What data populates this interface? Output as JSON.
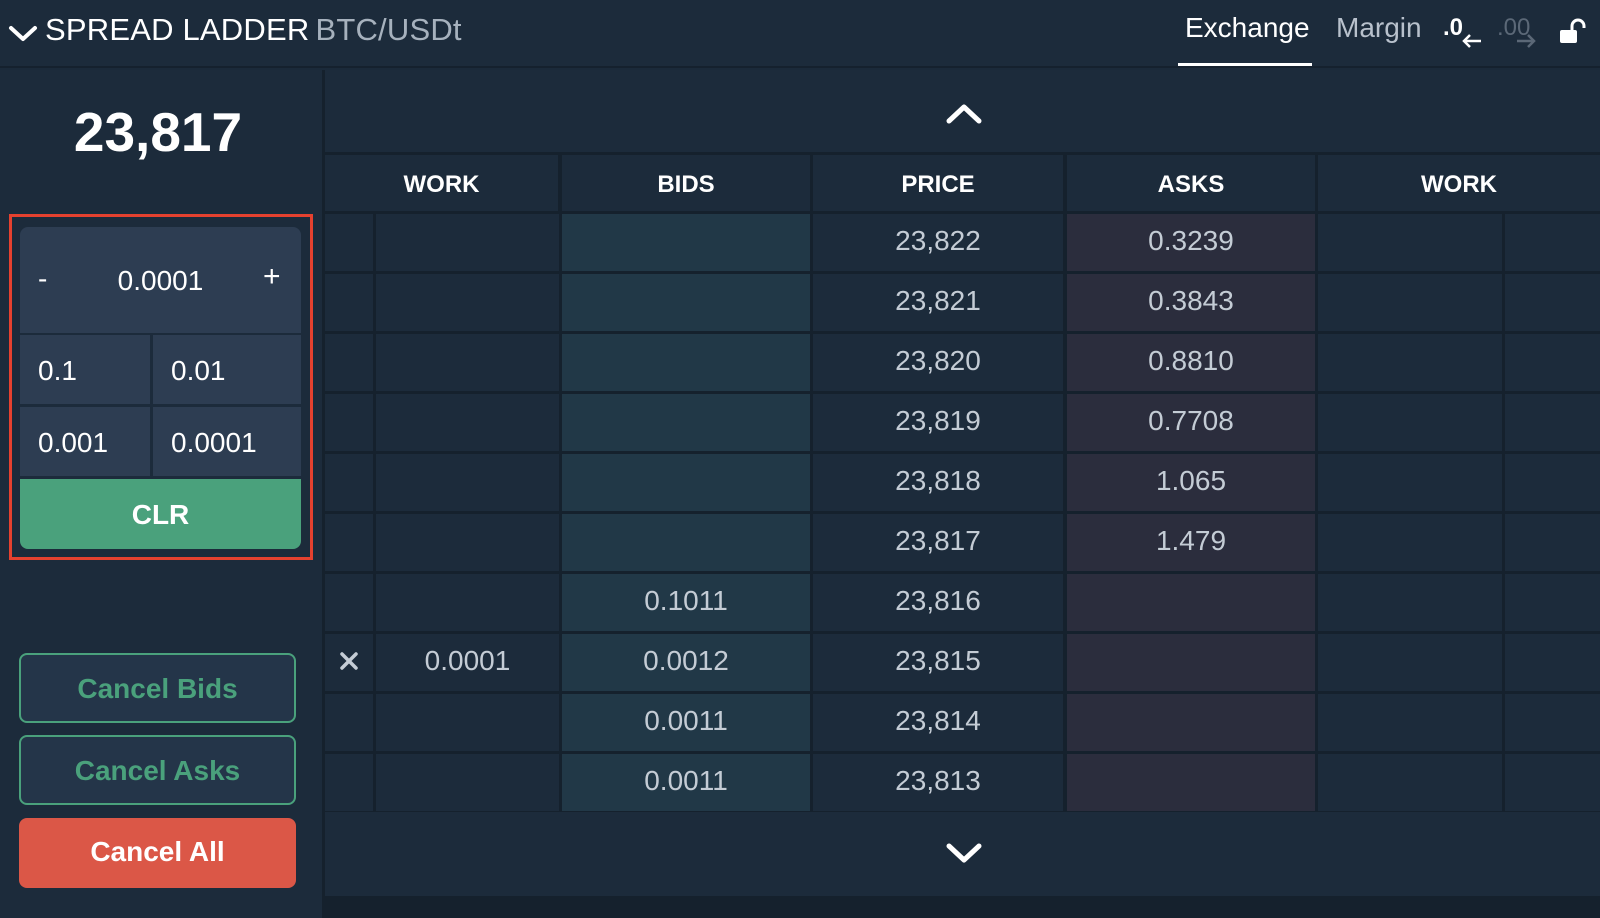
{
  "header": {
    "title": "SPREAD LADDER",
    "pair": "BTC/USDt",
    "tabs": [
      {
        "label": "Exchange",
        "active": true
      },
      {
        "label": "Margin",
        "active": false
      }
    ],
    "decimals_less": ".0",
    "decimals_more": ".00",
    "icons": [
      "chevron-down-icon",
      "arrow-left-icon",
      "arrow-right-icon",
      "unlock-icon"
    ]
  },
  "left_panel": {
    "last_price": "23,817",
    "quantity": {
      "minus_label": "-",
      "value": "0.0001",
      "plus_label": "+",
      "presets": [
        "0.1",
        "0.01",
        "0.001",
        "0.0001"
      ],
      "clear_label": "CLR"
    },
    "buttons": {
      "cancel_bids": "Cancel Bids",
      "cancel_asks": "Cancel Asks",
      "cancel_all": "Cancel All"
    }
  },
  "ladder": {
    "headers": {
      "work_left": "WORK",
      "bids": "BIDS",
      "price": "PRICE",
      "asks": "ASKS",
      "work_right": "WORK"
    },
    "rows": [
      {
        "price": "23,822",
        "bid": "",
        "ask": "0.3239",
        "work_bid": "",
        "has_cancel": false
      },
      {
        "price": "23,821",
        "bid": "",
        "ask": "0.3843",
        "work_bid": "",
        "has_cancel": false
      },
      {
        "price": "23,820",
        "bid": "",
        "ask": "0.8810",
        "work_bid": "",
        "has_cancel": false
      },
      {
        "price": "23,819",
        "bid": "",
        "ask": "0.7708",
        "work_bid": "",
        "has_cancel": false
      },
      {
        "price": "23,818",
        "bid": "",
        "ask": "1.065",
        "work_bid": "",
        "has_cancel": false
      },
      {
        "price": "23,817",
        "bid": "",
        "ask": "1.479",
        "work_bid": "",
        "has_cancel": false
      },
      {
        "price": "23,816",
        "bid": "0.1011",
        "ask": "",
        "work_bid": "",
        "has_cancel": false
      },
      {
        "price": "23,815",
        "bid": "0.0012",
        "ask": "",
        "work_bid": "0.0001",
        "has_cancel": true
      },
      {
        "price": "23,814",
        "bid": "0.0011",
        "ask": "",
        "work_bid": "",
        "has_cancel": false
      },
      {
        "price": "23,813",
        "bid": "0.0011",
        "ask": "",
        "work_bid": "",
        "has_cancel": false
      }
    ]
  },
  "colors": {
    "background": "#1b2a3a",
    "bid_cell": "#213847",
    "ask_cell": "#2b2d3d",
    "accent_green": "#4aa17c",
    "cancel_red": "#db5747",
    "highlight_border": "#e5412f"
  }
}
